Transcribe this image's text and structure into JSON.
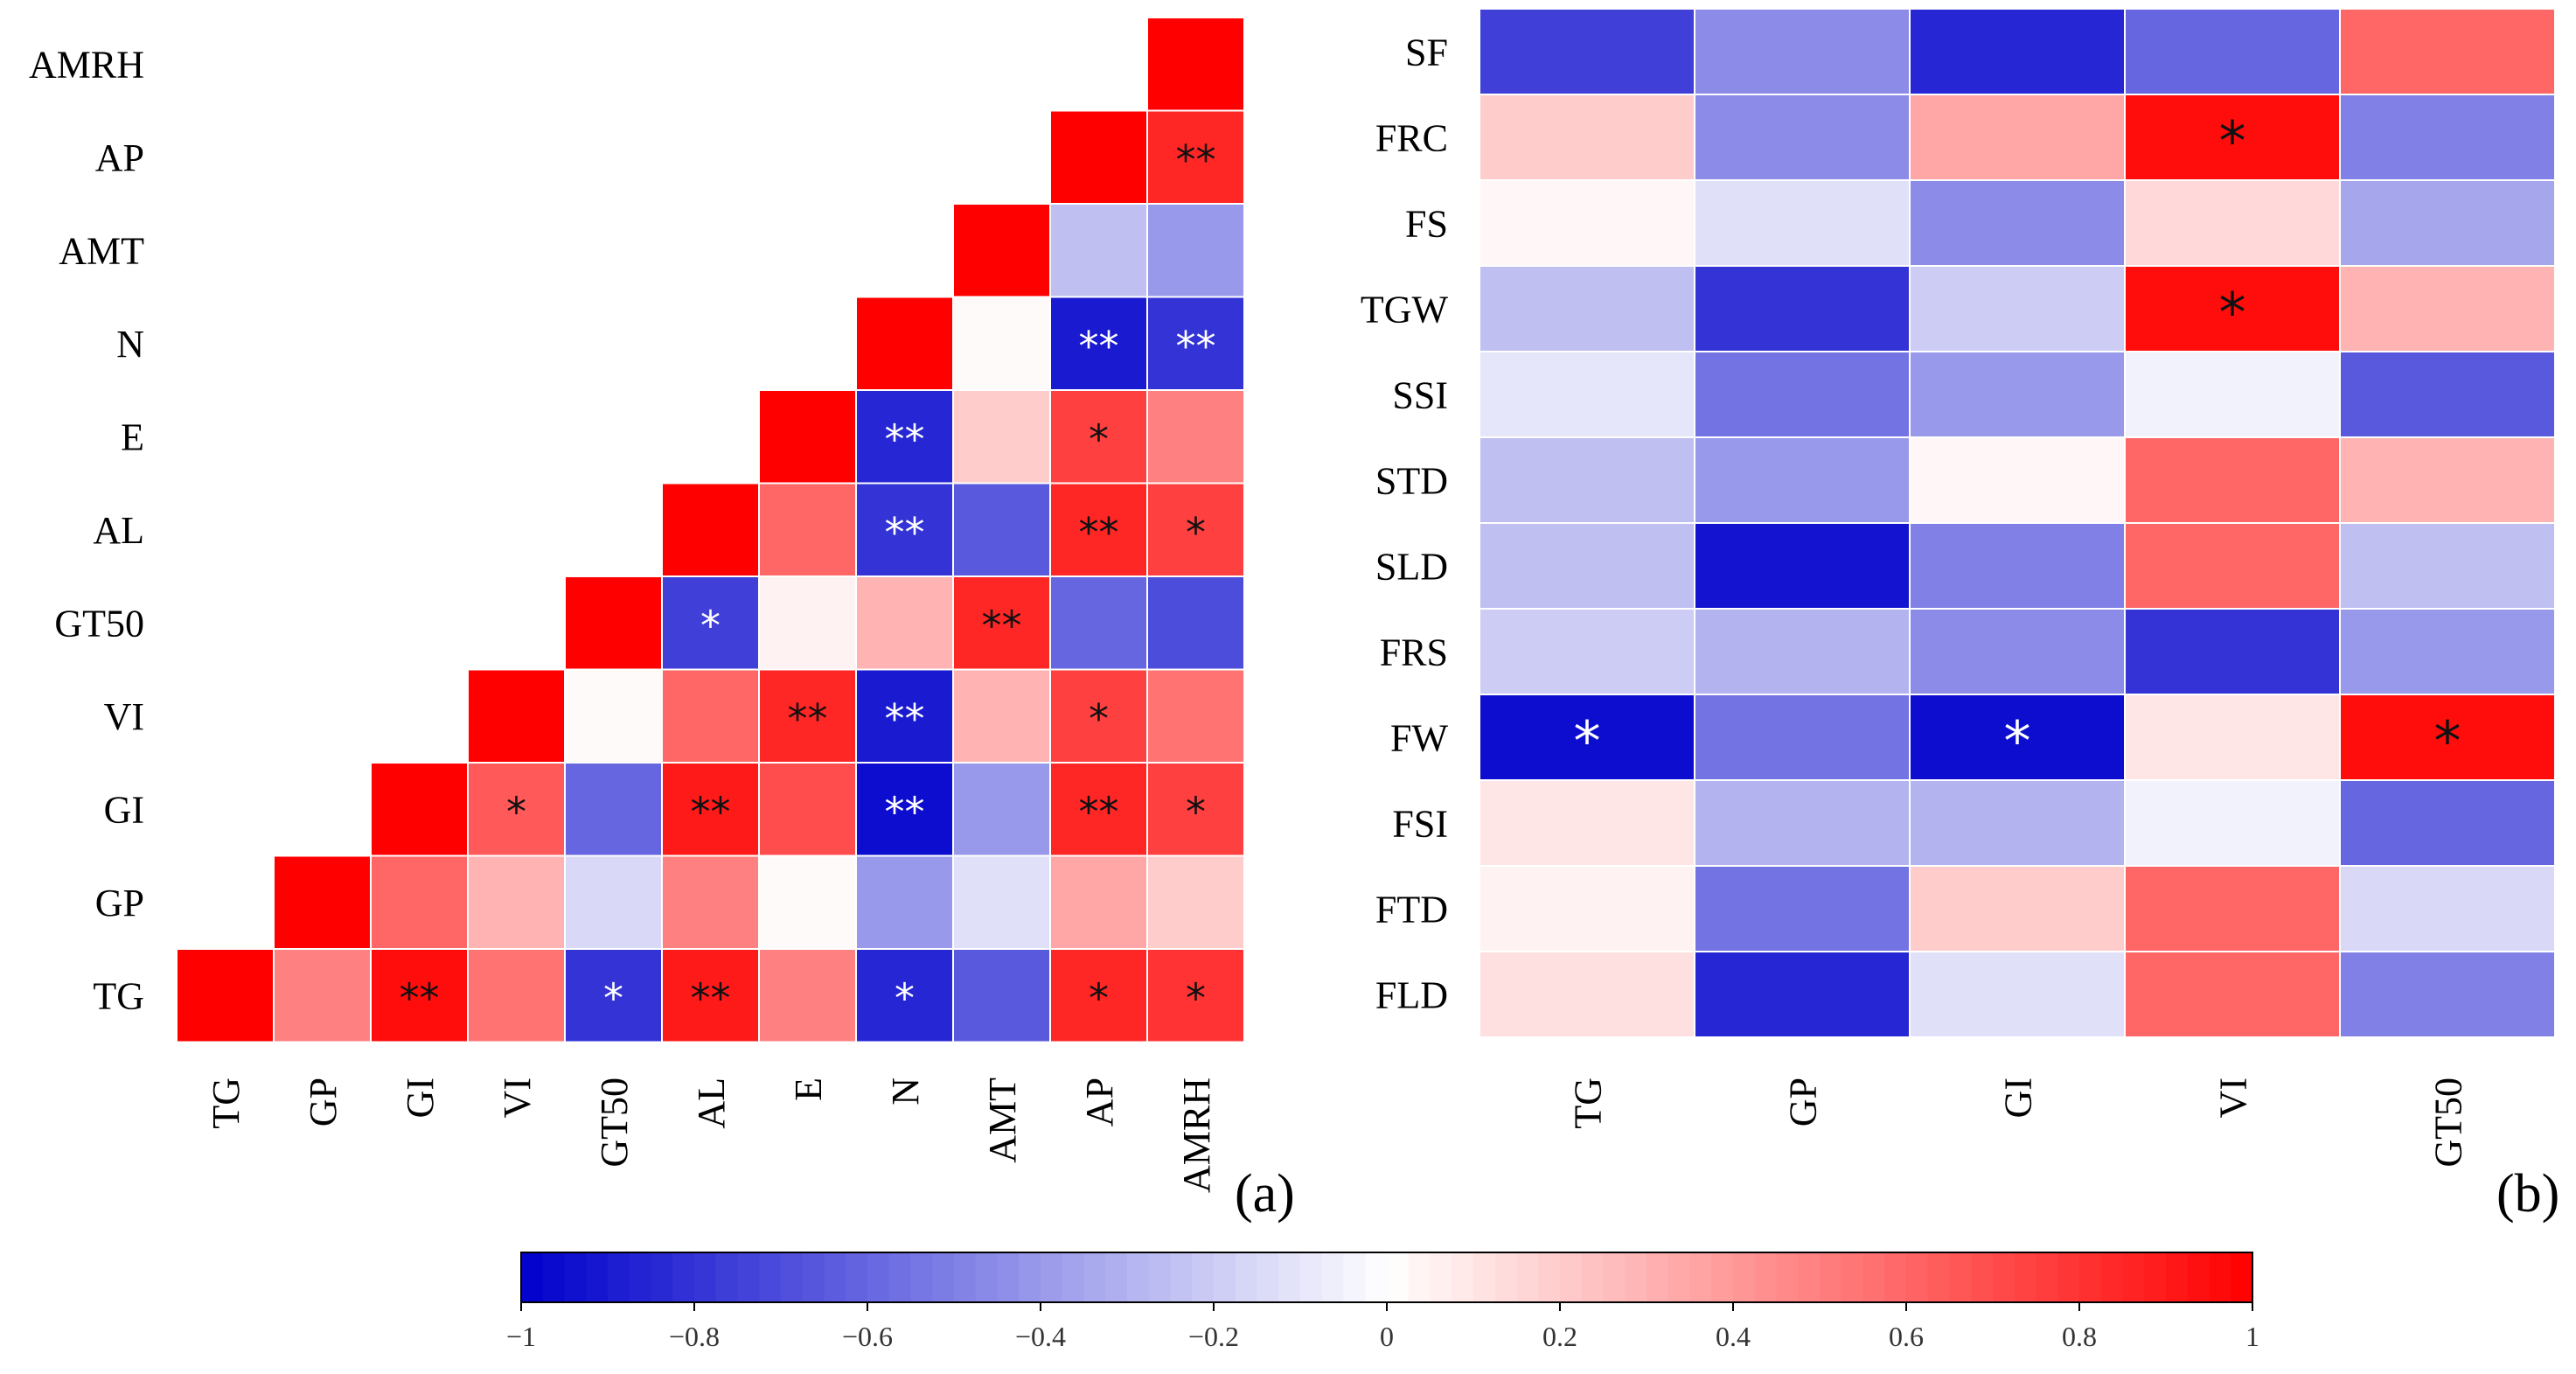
{
  "chart_data": [
    {
      "id": "a",
      "type": "heatmap",
      "panel_label": "(a)",
      "shape": "lower-triangle",
      "x_labels": [
        "TG",
        "GP",
        "GI",
        "VI",
        "GT50",
        "AL",
        "E",
        "N",
        "AMT",
        "AP",
        "AMRH"
      ],
      "y_labels": [
        "AMRH",
        "AP",
        "AMT",
        "N",
        "E",
        "AL",
        "GT50",
        "VI",
        "GI",
        "GP",
        "TG"
      ],
      "values": [
        [
          null,
          null,
          null,
          null,
          null,
          null,
          null,
          null,
          null,
          null,
          1.0
        ],
        [
          null,
          null,
          null,
          null,
          null,
          null,
          null,
          null,
          null,
          1.0,
          0.85
        ],
        [
          null,
          null,
          null,
          null,
          null,
          null,
          null,
          null,
          1.0,
          -0.25,
          -0.4
        ],
        [
          null,
          null,
          null,
          null,
          null,
          null,
          null,
          1.0,
          0.02,
          -0.9,
          -0.8
        ],
        [
          null,
          null,
          null,
          null,
          null,
          null,
          1.0,
          -0.85,
          0.2,
          0.75,
          0.5
        ],
        [
          null,
          null,
          null,
          null,
          null,
          1.0,
          0.6,
          -0.8,
          -0.65,
          0.85,
          0.75
        ],
        [
          null,
          null,
          null,
          null,
          1.0,
          -0.75,
          0.05,
          0.3,
          0.85,
          -0.6,
          -0.7
        ],
        [
          null,
          null,
          null,
          1.0,
          0.02,
          0.6,
          0.85,
          -0.9,
          0.3,
          0.75,
          0.55
        ],
        [
          null,
          null,
          1.0,
          0.65,
          -0.6,
          0.9,
          0.7,
          -0.95,
          -0.4,
          0.85,
          0.75
        ],
        [
          null,
          1.0,
          0.6,
          0.3,
          -0.15,
          0.5,
          0.02,
          -0.4,
          -0.12,
          0.35,
          0.2
        ],
        [
          1.0,
          0.5,
          0.95,
          0.55,
          -0.8,
          0.9,
          0.5,
          -0.85,
          -0.65,
          0.85,
          0.8
        ]
      ],
      "significance": [
        [
          "",
          "",
          "",
          "",
          "",
          "",
          "",
          "",
          "",
          "",
          ""
        ],
        [
          "",
          "",
          "",
          "",
          "",
          "",
          "",
          "",
          "",
          "",
          "**"
        ],
        [
          "",
          "",
          "",
          "",
          "",
          "",
          "",
          "",
          "",
          "",
          ""
        ],
        [
          "",
          "",
          "",
          "",
          "",
          "",
          "",
          "",
          "",
          "**",
          "**"
        ],
        [
          "",
          "",
          "",
          "",
          "",
          "",
          "",
          "**",
          "",
          "*",
          ""
        ],
        [
          "",
          "",
          "",
          "",
          "",
          "",
          "",
          "**",
          "",
          "**",
          "*"
        ],
        [
          "",
          "",
          "",
          "",
          "",
          "*",
          "",
          "",
          "**",
          "",
          ""
        ],
        [
          "",
          "",
          "",
          "",
          "",
          "",
          "**",
          "**",
          "",
          "*",
          ""
        ],
        [
          "",
          "",
          "",
          "*",
          "",
          "**",
          "",
          "**",
          "",
          "**",
          "*"
        ],
        [
          "",
          "",
          "",
          "",
          "",
          "",
          "",
          "",
          "",
          "",
          ""
        ],
        [
          "",
          "",
          "**",
          "",
          "*",
          "**",
          "",
          "*",
          "",
          "*",
          "*"
        ]
      ]
    },
    {
      "id": "b",
      "type": "heatmap",
      "panel_label": "(b)",
      "shape": "full",
      "x_labels": [
        "TG",
        "GP",
        "GI",
        "VI",
        "GT50"
      ],
      "y_labels": [
        "SF",
        "FRC",
        "FS",
        "TGW",
        "SSI",
        "STD",
        "SLD",
        "FRS",
        "FW",
        "FSI",
        "FTD",
        "FLD"
      ],
      "values": [
        [
          -0.75,
          -0.45,
          -0.85,
          -0.6,
          0.6
        ],
        [
          0.2,
          -0.45,
          0.35,
          0.95,
          -0.5
        ],
        [
          0.03,
          -0.12,
          -0.45,
          0.15,
          -0.35
        ],
        [
          -0.25,
          -0.8,
          -0.2,
          0.95,
          0.3
        ],
        [
          -0.1,
          -0.55,
          -0.4,
          -0.05,
          -0.65
        ],
        [
          -0.25,
          -0.4,
          0.03,
          0.6,
          0.3
        ],
        [
          -0.25,
          -0.92,
          -0.5,
          0.6,
          -0.25
        ],
        [
          -0.2,
          -0.3,
          -0.45,
          -0.8,
          -0.4
        ],
        [
          -0.95,
          -0.55,
          -0.95,
          0.1,
          0.95
        ],
        [
          0.1,
          -0.3,
          -0.3,
          -0.05,
          -0.6
        ],
        [
          0.05,
          -0.55,
          0.2,
          0.6,
          -0.15
        ],
        [
          0.12,
          -0.85,
          -0.12,
          0.6,
          -0.5
        ]
      ],
      "significance": [
        [
          "",
          "",
          "",
          "",
          ""
        ],
        [
          "",
          "",
          "",
          "*",
          ""
        ],
        [
          "",
          "",
          "",
          "",
          ""
        ],
        [
          "",
          "",
          "",
          "*",
          ""
        ],
        [
          "",
          "",
          "",
          "",
          ""
        ],
        [
          "",
          "",
          "",
          "",
          ""
        ],
        [
          "",
          "",
          "",
          "",
          ""
        ],
        [
          "",
          "",
          "",
          "",
          ""
        ],
        [
          "*",
          "",
          "*",
          "",
          "*"
        ],
        [
          "",
          "",
          "",
          "",
          ""
        ],
        [
          "",
          "",
          "",
          "",
          ""
        ],
        [
          "",
          "",
          "",
          "",
          ""
        ]
      ]
    }
  ],
  "colorbar": {
    "range": [
      -1,
      1
    ],
    "colors": {
      "negative": "#0000cc",
      "zero": "#ffffff",
      "positive": "#ff0000"
    },
    "ticks": [
      "−1",
      "−0.8",
      "−0.6",
      "−0.4",
      "−0.2",
      "0",
      "0.2",
      "0.4",
      "0.6",
      "0.8",
      "1"
    ],
    "tick_values": [
      -1,
      -0.8,
      -0.6,
      -0.4,
      -0.2,
      0,
      0.2,
      0.4,
      0.6,
      0.8,
      1
    ]
  }
}
